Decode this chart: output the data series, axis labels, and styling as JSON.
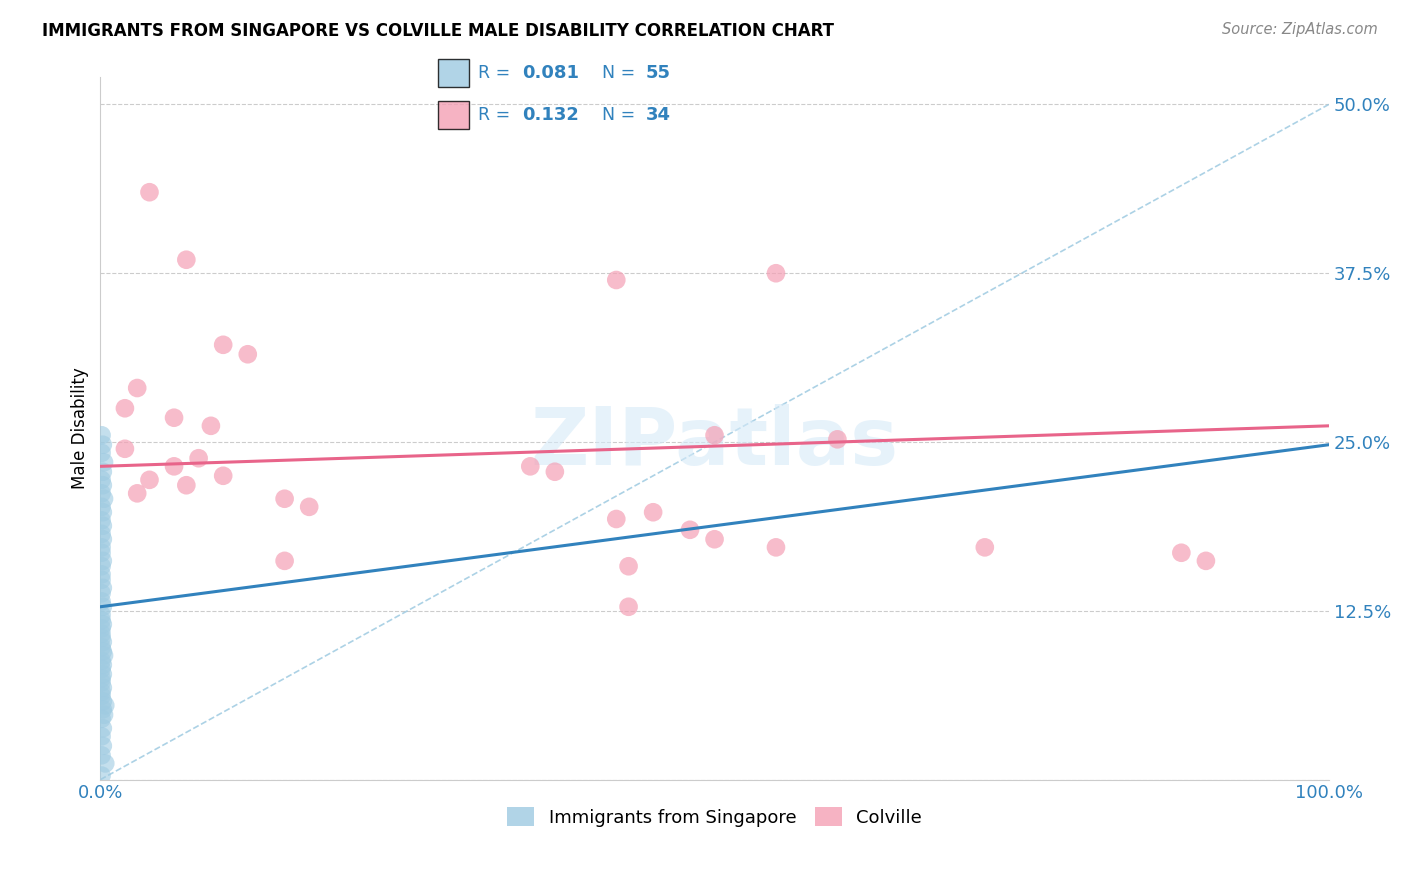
{
  "title": "IMMIGRANTS FROM SINGAPORE VS COLVILLE MALE DISABILITY CORRELATION CHART",
  "source": "Source: ZipAtlas.com",
  "ylabel": "Male Disability",
  "yticks": [
    0.0,
    0.125,
    0.25,
    0.375,
    0.5
  ],
  "ytick_labels": [
    "",
    "12.5%",
    "25.0%",
    "37.5%",
    "50.0%"
  ],
  "xlim": [
    0.0,
    1.0
  ],
  "ylim": [
    0.0,
    0.52
  ],
  "watermark": "ZIPatlas",
  "blue_color": "#9ecae1",
  "pink_color": "#f4a0b5",
  "blue_line_color": "#3182bd",
  "pink_line_color": "#e8648a",
  "diag_line_color": "#9ecae1",
  "blue_scatter": [
    [
      0.001,
      0.255
    ],
    [
      0.002,
      0.248
    ],
    [
      0.001,
      0.242
    ],
    [
      0.003,
      0.235
    ],
    [
      0.002,
      0.228
    ],
    [
      0.001,
      0.222
    ],
    [
      0.002,
      0.218
    ],
    [
      0.001,
      0.212
    ],
    [
      0.003,
      0.208
    ],
    [
      0.001,
      0.202
    ],
    [
      0.002,
      0.198
    ],
    [
      0.001,
      0.192
    ],
    [
      0.002,
      0.188
    ],
    [
      0.001,
      0.182
    ],
    [
      0.002,
      0.178
    ],
    [
      0.001,
      0.172
    ],
    [
      0.001,
      0.168
    ],
    [
      0.002,
      0.162
    ],
    [
      0.001,
      0.158
    ],
    [
      0.001,
      0.152
    ],
    [
      0.001,
      0.148
    ],
    [
      0.002,
      0.142
    ],
    [
      0.001,
      0.138
    ],
    [
      0.001,
      0.132
    ],
    [
      0.002,
      0.128
    ],
    [
      0.001,
      0.122
    ],
    [
      0.001,
      0.118
    ],
    [
      0.002,
      0.115
    ],
    [
      0.001,
      0.112
    ],
    [
      0.001,
      0.108
    ],
    [
      0.001,
      0.105
    ],
    [
      0.002,
      0.102
    ],
    [
      0.001,
      0.098
    ],
    [
      0.002,
      0.095
    ],
    [
      0.003,
      0.092
    ],
    [
      0.001,
      0.088
    ],
    [
      0.002,
      0.085
    ],
    [
      0.001,
      0.082
    ],
    [
      0.002,
      0.078
    ],
    [
      0.001,
      0.075
    ],
    [
      0.001,
      0.072
    ],
    [
      0.002,
      0.068
    ],
    [
      0.001,
      0.065
    ],
    [
      0.001,
      0.062
    ],
    [
      0.002,
      0.058
    ],
    [
      0.004,
      0.055
    ],
    [
      0.002,
      0.052
    ],
    [
      0.003,
      0.048
    ],
    [
      0.001,
      0.045
    ],
    [
      0.002,
      0.038
    ],
    [
      0.001,
      0.032
    ],
    [
      0.002,
      0.025
    ],
    [
      0.001,
      0.018
    ],
    [
      0.004,
      0.012
    ],
    [
      0.001,
      0.003
    ]
  ],
  "pink_scatter": [
    [
      0.04,
      0.435
    ],
    [
      0.07,
      0.385
    ],
    [
      0.1,
      0.322
    ],
    [
      0.12,
      0.315
    ],
    [
      0.03,
      0.29
    ],
    [
      0.02,
      0.275
    ],
    [
      0.06,
      0.268
    ],
    [
      0.09,
      0.262
    ],
    [
      0.55,
      0.375
    ],
    [
      0.42,
      0.37
    ],
    [
      0.5,
      0.255
    ],
    [
      0.6,
      0.252
    ],
    [
      0.02,
      0.245
    ],
    [
      0.08,
      0.238
    ],
    [
      0.35,
      0.232
    ],
    [
      0.37,
      0.228
    ],
    [
      0.04,
      0.222
    ],
    [
      0.07,
      0.218
    ],
    [
      0.03,
      0.212
    ],
    [
      0.15,
      0.208
    ],
    [
      0.17,
      0.202
    ],
    [
      0.06,
      0.232
    ],
    [
      0.1,
      0.225
    ],
    [
      0.45,
      0.198
    ],
    [
      0.42,
      0.193
    ],
    [
      0.48,
      0.185
    ],
    [
      0.5,
      0.178
    ],
    [
      0.55,
      0.172
    ],
    [
      0.72,
      0.172
    ],
    [
      0.15,
      0.162
    ],
    [
      0.43,
      0.158
    ],
    [
      0.88,
      0.168
    ],
    [
      0.9,
      0.162
    ],
    [
      0.43,
      0.128
    ]
  ],
  "blue_trend_y_start": 0.128,
  "blue_trend_y_end": 0.248,
  "pink_trend_y_start": 0.232,
  "pink_trend_y_end": 0.262,
  "diag_line_y_end": 0.5
}
